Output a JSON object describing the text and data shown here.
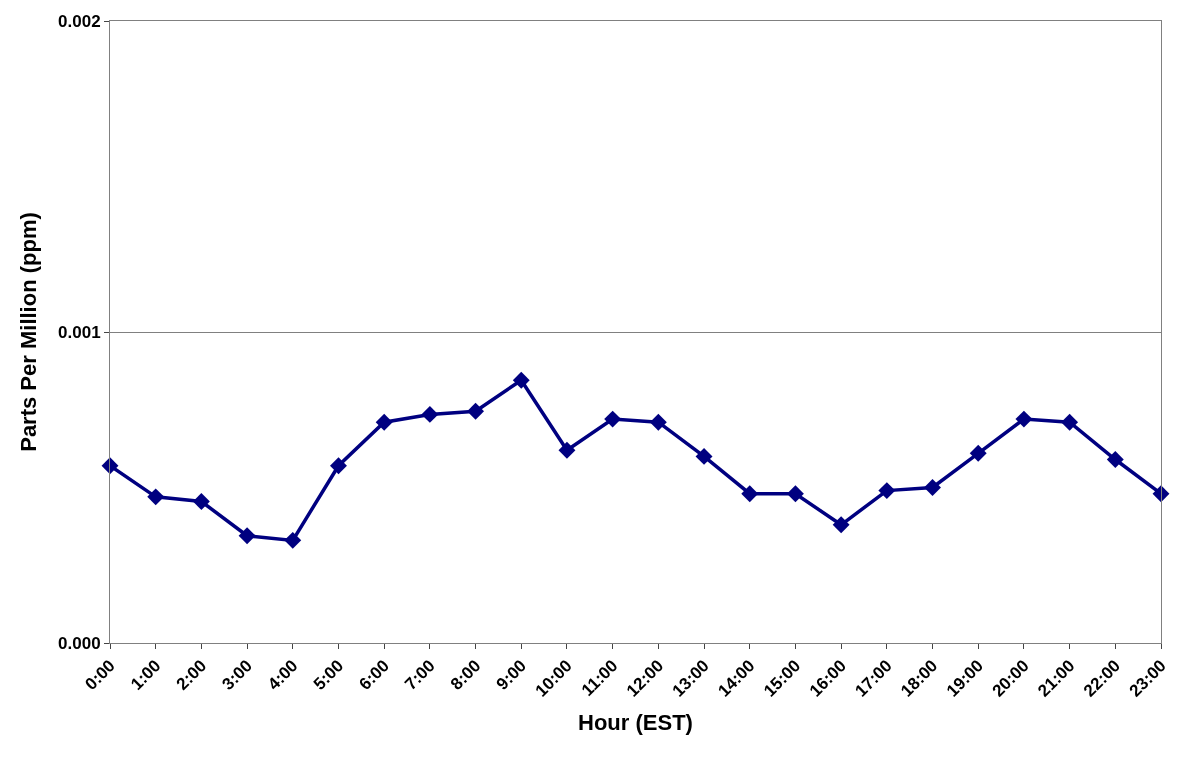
{
  "chart_data": {
    "type": "line",
    "xlabel": "Hour (EST)",
    "ylabel": "Parts Per Million (ppm)",
    "categories": [
      "0:00",
      "1:00",
      "2:00",
      "3:00",
      "4:00",
      "5:00",
      "6:00",
      "7:00",
      "8:00",
      "9:00",
      "10:00",
      "11:00",
      "12:00",
      "13:00",
      "14:00",
      "15:00",
      "16:00",
      "17:00",
      "18:00",
      "19:00",
      "20:00",
      "21:00",
      "22:00",
      "23:00"
    ],
    "series": [
      {
        "color": "#000080",
        "values": [
          0.00057,
          0.00047,
          0.000455,
          0.000345,
          0.00033,
          0.00057,
          0.00071,
          0.000735,
          0.000745,
          0.000845,
          0.00062,
          0.00072,
          0.00071,
          0.0006,
          0.00048,
          0.00048,
          0.00038,
          0.00049,
          0.0005,
          0.00061,
          0.00072,
          0.00071,
          0.00059,
          0.00048
        ]
      }
    ],
    "ylim": [
      0,
      0.002
    ],
    "yticks": [
      {
        "value": 0,
        "label": "0.000"
      },
      {
        "value": 0.001,
        "label": "0.001"
      },
      {
        "value": 0.002,
        "label": "0.002"
      }
    ],
    "grid": "y",
    "legend": false,
    "marker": "diamond",
    "line_style": "solid"
  }
}
